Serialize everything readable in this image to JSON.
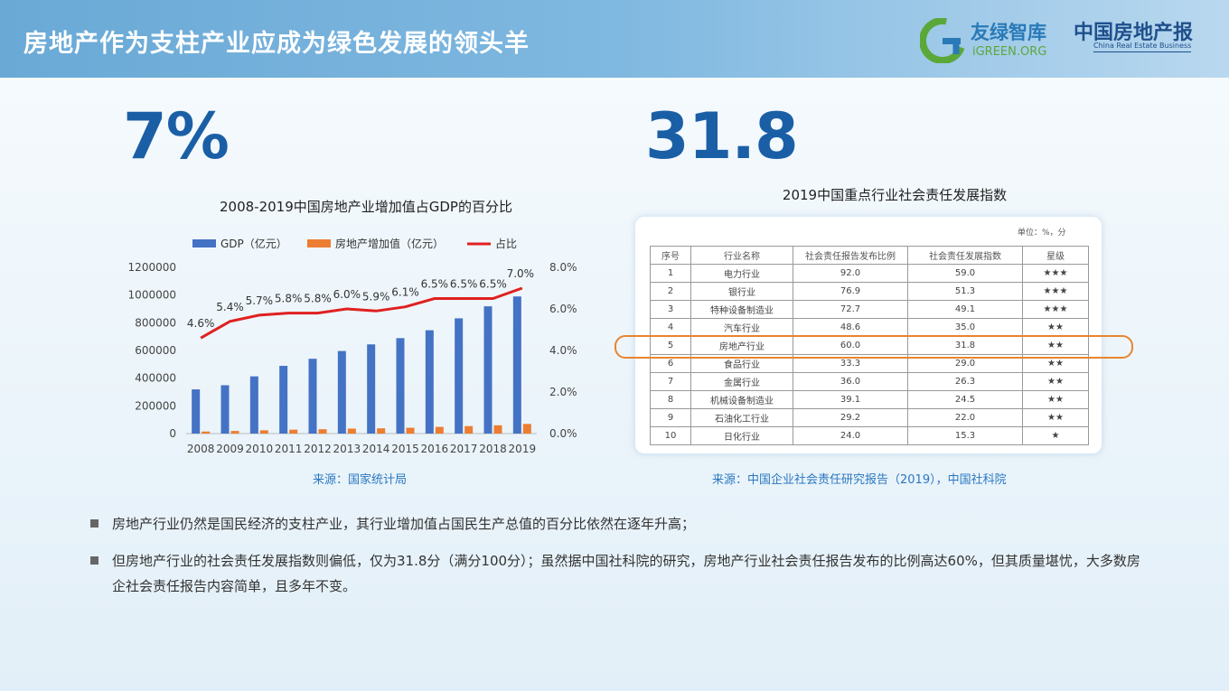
{
  "header": {
    "title": "房地产作为支柱产业应成为绿色发展的领头羊",
    "logo_igreen_cn": "友绿智库",
    "logo_igreen_en": "iGREEN.ORG",
    "logo_paper_cn": "中国房地产报",
    "logo_paper_en": "China Real Estate Business"
  },
  "left_panel": {
    "big_number": "7%",
    "source": "来源：国家统计局"
  },
  "right_panel": {
    "big_number": "31.8",
    "title": "2019中国重点行业社会责任发展指数",
    "unit": "单位：%，分",
    "source": "来源：中国企业社会责任研究报告（2019），中国社科院",
    "columns": [
      "序号",
      "行业名称",
      "社会责任报告发布比例",
      "社会责任发展指数",
      "星级"
    ],
    "rows": [
      [
        "1",
        "电力行业",
        "92.0",
        "59.0",
        "★★★"
      ],
      [
        "2",
        "银行业",
        "76.9",
        "51.3",
        "★★★"
      ],
      [
        "3",
        "特种设备制造业",
        "72.7",
        "49.1",
        "★★★"
      ],
      [
        "4",
        "汽车行业",
        "48.6",
        "35.0",
        "★★"
      ],
      [
        "5",
        "房地产行业",
        "60.0",
        "31.8",
        "★★"
      ],
      [
        "6",
        "食品行业",
        "33.3",
        "29.0",
        "★★"
      ],
      [
        "7",
        "金属行业",
        "36.0",
        "26.3",
        "★★"
      ],
      [
        "8",
        "机械设备制造业",
        "39.1",
        "24.5",
        "★★"
      ],
      [
        "9",
        "石油化工行业",
        "29.2",
        "22.0",
        "★★"
      ],
      [
        "10",
        "日化行业",
        "24.0",
        "15.3",
        "★"
      ]
    ]
  },
  "bullets": [
    "房地产行业仍然是国民经济的支柱产业，其行业增加值占国民生产总值的百分比依然在逐年升高；",
    "但房地产行业的社会责任发展指数则偏低，仅为31.8分（满分100分）；虽然据中国社科院的研究，房地产行业社会责任报告发布的比例高达60%，但其质量堪忧，大多数房企社会责任报告内容简单，且多年不变。"
  ],
  "chart_data": {
    "type": "bar",
    "title": "2008-2019中国房地产业增加值占GDP的百分比",
    "categories": [
      "2008",
      "2009",
      "2010",
      "2011",
      "2012",
      "2013",
      "2014",
      "2015",
      "2016",
      "2017",
      "2018",
      "2019"
    ],
    "series": [
      {
        "name": "GDP（亿元）",
        "type": "bar",
        "axis": "left",
        "color": "#4472c4",
        "values": [
          319000,
          349000,
          413000,
          489000,
          540000,
          596000,
          644000,
          689000,
          746000,
          832000,
          919000,
          990000
        ]
      },
      {
        "name": "房地产增加值（亿元）",
        "type": "bar",
        "axis": "left",
        "color": "#ed7d31",
        "values": [
          14700,
          18900,
          23600,
          28200,
          31200,
          35900,
          38000,
          42000,
          48200,
          53900,
          59800,
          69600
        ]
      },
      {
        "name": "占比",
        "type": "line",
        "axis": "right",
        "color": "#e02020",
        "values": [
          4.6,
          5.4,
          5.7,
          5.8,
          5.8,
          6.0,
          5.9,
          6.1,
          6.5,
          6.5,
          6.5,
          7.0
        ],
        "labels": [
          "4.6%",
          "5.4%",
          "5.7%",
          "5.8%",
          "5.8%",
          "6.0%",
          "5.9%",
          "6.1%",
          "6.5%",
          "6.5%",
          "6.5%",
          "7.0%"
        ]
      }
    ],
    "ylim": [
      0,
      1200000
    ],
    "y_ticks": [
      "0",
      "200000",
      "400000",
      "600000",
      "800000",
      "1000000",
      "1200000"
    ],
    "y2lim": [
      0,
      8
    ],
    "y2_ticks": [
      "0.0%",
      "2.0%",
      "4.0%",
      "6.0%",
      "8.0%"
    ],
    "legend_position": "top"
  }
}
